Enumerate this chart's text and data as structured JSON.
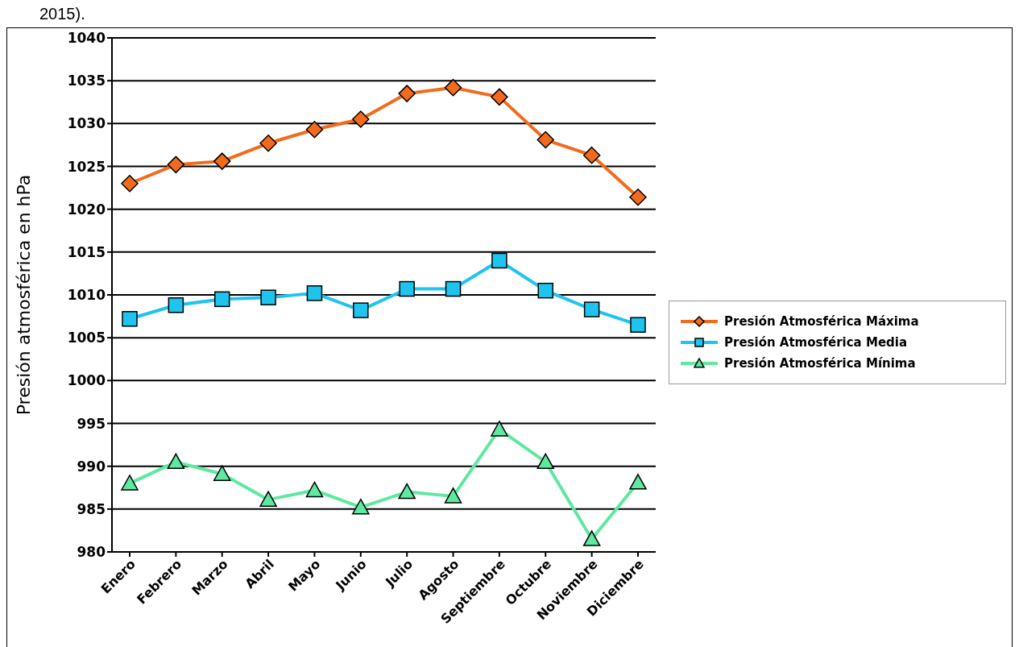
{
  "chart_data": {
    "type": "line",
    "ylabel": "Presión atmosférica en hPa",
    "annotations": [
      "2015)."
    ],
    "categories": [
      "Enero",
      "Febrero",
      "Marzo",
      "Abril",
      "Mayo",
      "Junio",
      "Julio",
      "Agosto",
      "Septiembre",
      "Octubre",
      "Noviembre",
      "Diciembre"
    ],
    "series": [
      {
        "name": "Presión Atmosférica Máxima",
        "color": "#f26b1d",
        "marker": "diamond",
        "values": [
          1023.0,
          1025.2,
          1025.6,
          1027.7,
          1029.3,
          1030.5,
          1033.5,
          1034.2,
          1033.1,
          1028.1,
          1026.3,
          1021.4
        ]
      },
      {
        "name": "Presión Atmosférica Media",
        "color": "#1fc4ee",
        "marker": "square",
        "values": [
          1007.2,
          1008.8,
          1009.5,
          1009.7,
          1010.2,
          1008.2,
          1010.7,
          1010.7,
          1014.0,
          1010.5,
          1008.3,
          1006.5
        ]
      },
      {
        "name": "Presión Atmosférica Mínima",
        "color": "#5ee8a0",
        "marker": "triangle",
        "values": [
          988.0,
          990.5,
          989.1,
          986.1,
          987.2,
          985.2,
          987.0,
          986.5,
          994.3,
          990.5,
          981.5,
          988.1
        ]
      }
    ],
    "ylim": [
      980,
      1040
    ],
    "yticks": [
      980,
      985,
      990,
      995,
      1000,
      1005,
      1010,
      1015,
      1020,
      1025,
      1030,
      1035,
      1040
    ],
    "grid": "y",
    "legend": "right",
    "line_style": "solid"
  }
}
